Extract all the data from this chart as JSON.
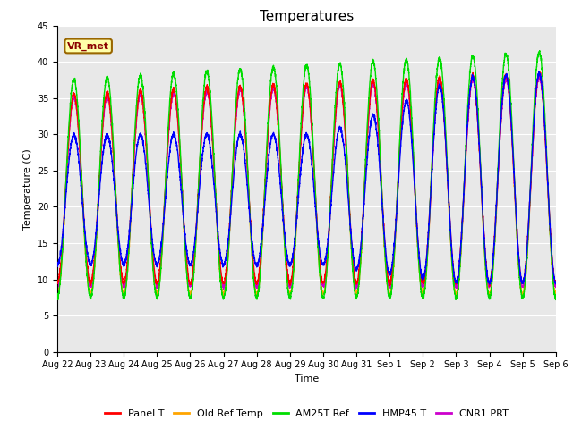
{
  "title": "Temperatures",
  "xlabel": "Time",
  "ylabel": "Temperature (C)",
  "ylim": [
    0,
    45
  ],
  "yticks": [
    0,
    5,
    10,
    15,
    20,
    25,
    30,
    35,
    40,
    45
  ],
  "n_days": 15,
  "annotation_text": "VR_met",
  "series": [
    {
      "label": "Panel T",
      "color": "#ff0000",
      "lw": 1.0,
      "zorder": 3
    },
    {
      "label": "Old Ref Temp",
      "color": "#ffa500",
      "lw": 1.0,
      "zorder": 2
    },
    {
      "label": "AM25T Ref",
      "color": "#00dd00",
      "lw": 1.0,
      "zorder": 4
    },
    {
      "label": "HMP45 T",
      "color": "#0000ff",
      "lw": 1.0,
      "zorder": 5
    },
    {
      "label": "CNR1 PRT",
      "color": "#cc00cc",
      "lw": 1.0,
      "zorder": 2
    }
  ],
  "tick_labels": [
    "Aug 22",
    "Aug 23",
    "Aug 24",
    "Aug 25",
    "Aug 26",
    "Aug 27",
    "Aug 28",
    "Aug 29",
    "Aug 30",
    "Aug 31",
    "Sep 1",
    "Sep 2",
    "Sep 3",
    "Sep 4",
    "Sep 5",
    "Sep 6"
  ],
  "background_color": "#e8e8e8",
  "figure_bg": "#ffffff",
  "title_fontsize": 11,
  "axis_fontsize": 8,
  "tick_fontsize": 7,
  "legend_fontsize": 8
}
